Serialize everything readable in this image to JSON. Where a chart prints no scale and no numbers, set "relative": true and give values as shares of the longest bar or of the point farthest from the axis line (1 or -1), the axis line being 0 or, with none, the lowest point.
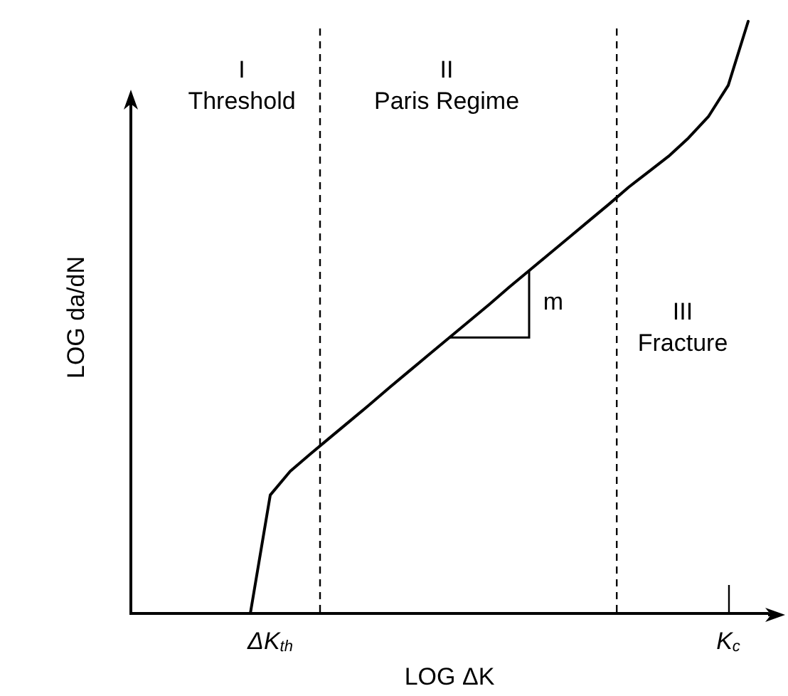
{
  "chart_data": {
    "type": "line",
    "relative": true,
    "xlabel": "LOG ΔK",
    "ylabel": "LOG da/dN",
    "categories": [
      null,
      null,
      null,
      null,
      null,
      null,
      null,
      "ΔK$_{th}$",
      null,
      null,
      null,
      null,
      null,
      null,
      null,
      null,
      null,
      null,
      null,
      null,
      null,
      null,
      null,
      null,
      null,
      null,
      null,
      null,
      null,
      null,
      "K$_{c}$",
      null,
      null
    ],
    "grid": false,
    "marker": "none",
    "series": [
      {
        "color": "#000000",
        "line_style": "solid",
        "values": [
          null,
          null,
          null,
          null,
          null,
          null,
          0,
          0.2,
          0.24,
          0.269,
          0.297,
          0.325,
          0.353,
          0.382,
          0.41,
          0.438,
          0.466,
          0.494,
          0.522,
          0.551,
          0.579,
          0.607,
          0.635,
          0.663,
          0.691,
          0.72,
          0.746,
          0.772,
          0.803,
          0.839,
          0.892,
          1,
          null
        ]
      }
    ],
    "annotations": [
      "I\nThreshold",
      "II\nParis Regime",
      "III\nFracture",
      "m"
    ]
  }
}
